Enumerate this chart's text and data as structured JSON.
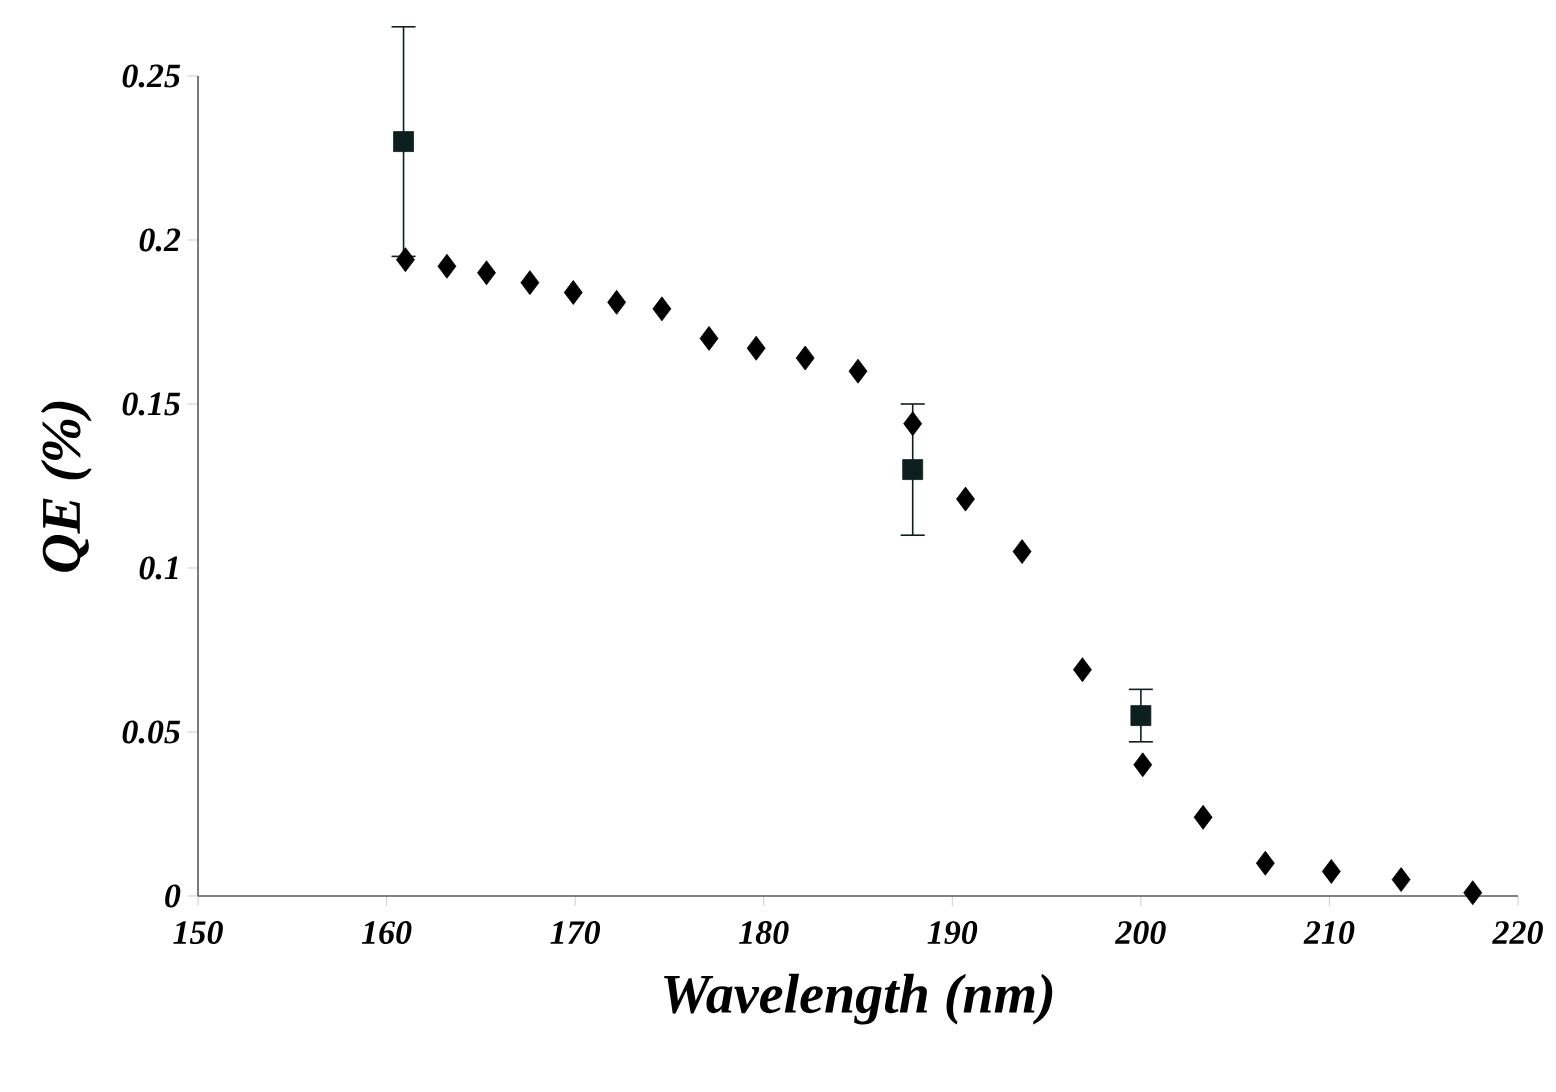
{
  "chart_data": {
    "type": "scatter",
    "xlabel": "Wavelength (nm)",
    "ylabel": "QE (%)",
    "xlim": [
      150,
      220
    ],
    "xticks": [
      150,
      160,
      170,
      180,
      190,
      200,
      210,
      220
    ],
    "ylim": [
      0,
      0.25
    ],
    "yticks": [
      {
        "value": 0,
        "label": "0"
      },
      {
        "value": 0.05,
        "label": "0.05"
      },
      {
        "value": 0.1,
        "label": "0.1"
      },
      {
        "value": 0.15,
        "label": "0.15"
      },
      {
        "value": 0.2,
        "label": "0.2"
      },
      {
        "value": 0.25,
        "label": "0.25"
      }
    ],
    "series": [
      {
        "color": "#000000",
        "marker": "diamond",
        "x": [
          161.0,
          163.2,
          165.3,
          167.6,
          169.9,
          172.2,
          174.6,
          177.1,
          179.6,
          182.2,
          185.0,
          187.9,
          190.7,
          193.7,
          196.9,
          200.1,
          203.3,
          206.6,
          210.1,
          213.8,
          217.6
        ],
        "values": [
          0.194,
          0.192,
          0.19,
          0.187,
          0.184,
          0.181,
          0.179,
          0.17,
          0.167,
          0.164,
          0.16,
          0.144,
          0.121,
          0.105,
          0.069,
          0.04,
          0.024,
          0.01,
          0.0075,
          0.005,
          0.001
        ]
      },
      {
        "color": "#0d1f1f",
        "marker": "square",
        "x": [
          160.9,
          187.9,
          200.0
        ],
        "values": [
          0.23,
          0.13,
          0.055
        ],
        "errors": [
          0.035,
          0.02,
          0.008
        ]
      }
    ]
  }
}
